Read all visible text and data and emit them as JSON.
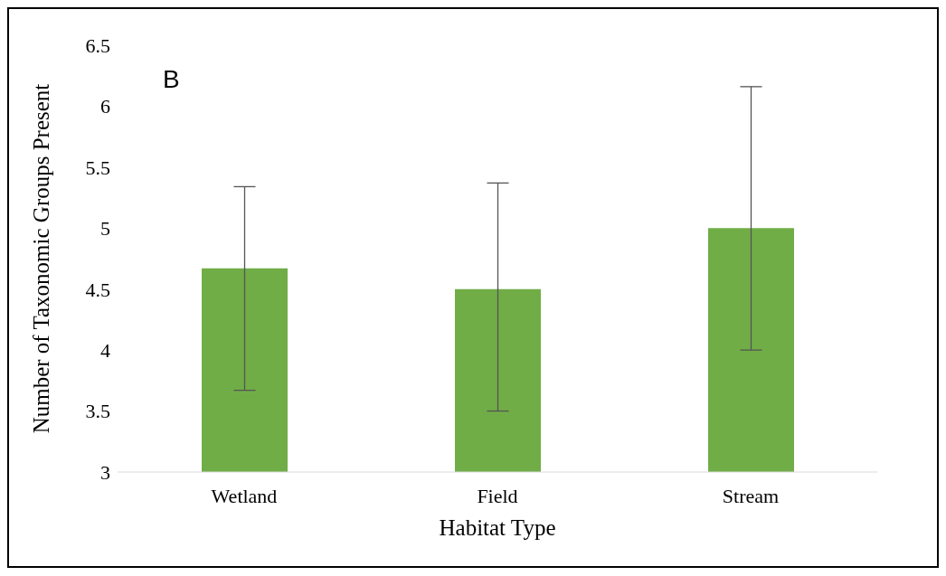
{
  "chart_data": {
    "type": "bar",
    "categories": [
      "Wetland",
      "Field",
      "Stream"
    ],
    "values": [
      4.67,
      4.5,
      5.0
    ],
    "color": "#70ad47",
    "errors": [
      [
        3.67,
        5.34
      ],
      [
        3.5,
        5.37
      ],
      [
        4.0,
        6.16
      ]
    ],
    "ylim": [
      3,
      6.5
    ],
    "yticks": [
      3,
      3.5,
      4,
      4.5,
      5,
      5.5,
      6,
      6.5
    ],
    "grid": false,
    "xlabel": "Habitat Type",
    "ylabel": "Number of Taxonomic Groups Present",
    "annotations": [
      "B"
    ]
  }
}
